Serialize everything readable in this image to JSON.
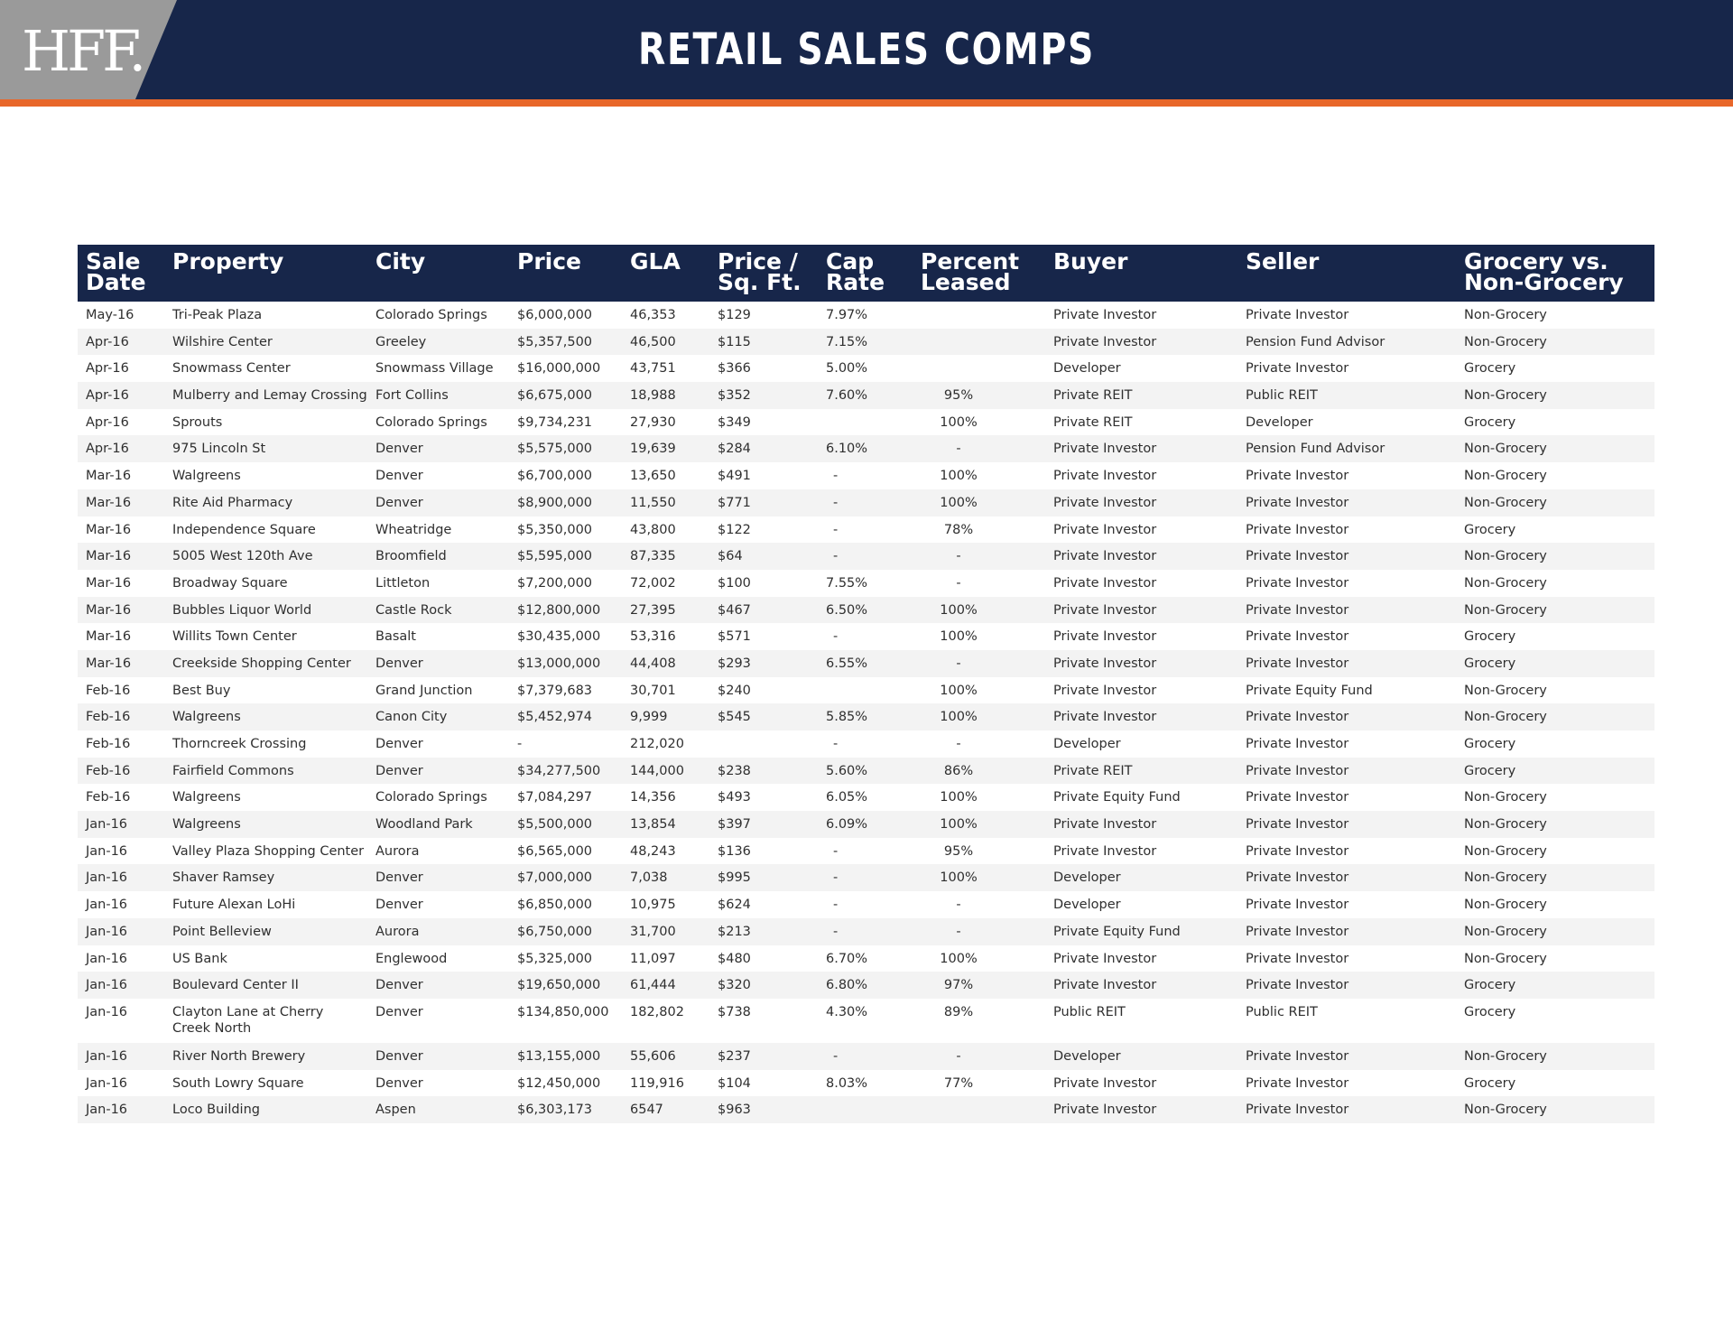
{
  "header": {
    "logo_text": "HFF.",
    "title": "RETAIL SALES COMPS"
  },
  "colors": {
    "navy": "#17264a",
    "orange": "#e8672a",
    "logo_gray": "#9a9a9a"
  },
  "table": {
    "headers": [
      "Sale\nDate",
      "Property",
      "City",
      "Price",
      "GLA",
      "Price /\nSq. Ft.",
      "Cap\nRate",
      "Percent\nLeased",
      "Buyer",
      "Seller",
      "Grocery vs.\nNon-Grocery"
    ],
    "rows": [
      [
        "May-16",
        "Tri-Peak Plaza",
        "Colorado Springs",
        "$6,000,000",
        "46,353",
        "$129",
        "7.97%",
        "",
        "Private Investor",
        "Private Investor",
        "Non-Grocery"
      ],
      [
        "Apr-16",
        "Wilshire Center",
        "Greeley",
        "$5,357,500",
        "46,500",
        "$115",
        "7.15%",
        "",
        "Private Investor",
        "Pension Fund Advisor",
        "Non-Grocery"
      ],
      [
        "Apr-16",
        "Snowmass Center",
        "Snowmass Village",
        "$16,000,000",
        "43,751",
        "$366",
        "5.00%",
        "",
        "Developer",
        "Private Investor",
        "Grocery"
      ],
      [
        "Apr-16",
        "Mulberry and Lemay Crossing",
        "Fort Collins",
        "$6,675,000",
        "18,988",
        "$352",
        "7.60%",
        "95%",
        "Private REIT",
        "Public REIT",
        "Non-Grocery"
      ],
      [
        "Apr-16",
        "Sprouts",
        "Colorado Springs",
        "$9,734,231",
        "27,930",
        "$349",
        "",
        "100%",
        "Private REIT",
        "Developer",
        "Grocery"
      ],
      [
        "Apr-16",
        "975 Lincoln St",
        "Denver",
        "$5,575,000",
        "19,639",
        "$284",
        "6.10%",
        "-",
        "Private Investor",
        "Pension Fund Advisor",
        "Non-Grocery"
      ],
      [
        "Mar-16",
        "Walgreens",
        "Denver",
        "$6,700,000",
        "13,650",
        "$491",
        "-",
        "100%",
        "Private Investor",
        "Private Investor",
        "Non-Grocery"
      ],
      [
        "Mar-16",
        "Rite Aid Pharmacy",
        "Denver",
        "$8,900,000",
        "11,550",
        "$771",
        "-",
        "100%",
        "Private Investor",
        "Private Investor",
        "Non-Grocery"
      ],
      [
        "Mar-16",
        "Independence Square",
        "Wheatridge",
        "$5,350,000",
        "43,800",
        "$122",
        "-",
        "78%",
        "Private Investor",
        "Private Investor",
        "Grocery"
      ],
      [
        "Mar-16",
        "5005 West 120th Ave",
        "Broomfield",
        "$5,595,000",
        "87,335",
        "$64",
        "-",
        "-",
        "Private Investor",
        "Private Investor",
        "Non-Grocery"
      ],
      [
        "Mar-16",
        "Broadway Square",
        "Littleton",
        "$7,200,000",
        "72,002",
        "$100",
        "7.55%",
        "-",
        "Private Investor",
        "Private Investor",
        "Non-Grocery"
      ],
      [
        "Mar-16",
        "Bubbles Liquor World",
        "Castle Rock",
        "$12,800,000",
        "27,395",
        "$467",
        "6.50%",
        "100%",
        "Private Investor",
        "Private Investor",
        "Non-Grocery"
      ],
      [
        "Mar-16",
        "Willits Town Center",
        "Basalt",
        "$30,435,000",
        "53,316",
        "$571",
        "-",
        "100%",
        "Private Investor",
        "Private Investor",
        "Grocery"
      ],
      [
        "Mar-16",
        "Creekside Shopping Center",
        "Denver",
        "$13,000,000",
        "44,408",
        "$293",
        "6.55%",
        "-",
        "Private Investor",
        "Private Investor",
        "Grocery"
      ],
      [
        "Feb-16",
        "Best Buy",
        "Grand Junction",
        "$7,379,683",
        "30,701",
        "$240",
        "",
        "100%",
        "Private Investor",
        "Private Equity Fund",
        "Non-Grocery"
      ],
      [
        "Feb-16",
        "Walgreens",
        "Canon City",
        "$5,452,974",
        "9,999",
        "$545",
        "5.85%",
        "100%",
        "Private Investor",
        "Private Investor",
        "Non-Grocery"
      ],
      [
        "Feb-16",
        "Thorncreek Crossing",
        "Denver",
        "-",
        "212,020",
        "",
        "-",
        "-",
        "Developer",
        "Private Investor",
        "Grocery"
      ],
      [
        "Feb-16",
        "Fairfield Commons",
        "Denver",
        "$34,277,500",
        "144,000",
        "$238",
        "5.60%",
        "86%",
        "Private REIT",
        "Private Investor",
        "Grocery"
      ],
      [
        "Feb-16",
        "Walgreens",
        "Colorado Springs",
        "$7,084,297",
        "14,356",
        "$493",
        "6.05%",
        "100%",
        "Private Equity Fund",
        "Private Investor",
        "Non-Grocery"
      ],
      [
        "Jan-16",
        "Walgreens",
        "Woodland Park",
        "$5,500,000",
        "13,854",
        "$397",
        "6.09%",
        "100%",
        "Private Investor",
        "Private Investor",
        "Non-Grocery"
      ],
      [
        "Jan-16",
        "Valley Plaza Shopping Center",
        "Aurora",
        "$6,565,000",
        "48,243",
        "$136",
        "-",
        "95%",
        "Private Investor",
        "Private Investor",
        "Non-Grocery"
      ],
      [
        "Jan-16",
        "Shaver Ramsey",
        "Denver",
        "$7,000,000",
        "7,038",
        "$995",
        "-",
        "100%",
        "Developer",
        "Private Investor",
        "Non-Grocery"
      ],
      [
        "Jan-16",
        "Future Alexan LoHi",
        "Denver",
        "$6,850,000",
        "10,975",
        "$624",
        "-",
        "-",
        "Developer",
        "Private Investor",
        "Non-Grocery"
      ],
      [
        "Jan-16",
        "Point Belleview",
        "Aurora",
        "$6,750,000",
        "31,700",
        "$213",
        "-",
        "-",
        "Private Equity Fund",
        "Private Investor",
        "Non-Grocery"
      ],
      [
        "Jan-16",
        "US Bank",
        "Englewood",
        "$5,325,000",
        "11,097",
        "$480",
        "6.70%",
        "100%",
        "Private Investor",
        "Private Investor",
        "Non-Grocery"
      ],
      [
        "Jan-16",
        "Boulevard Center II",
        "Denver",
        "$19,650,000",
        "61,444",
        "$320",
        "6.80%",
        "97%",
        "Private Investor",
        "Private Investor",
        "Grocery"
      ],
      [
        "Jan-16",
        "Clayton Lane at Cherry Creek North",
        "Denver",
        "$134,850,000",
        "182,802",
        "$738",
        "4.30%",
        "89%",
        "Public REIT",
        "Public REIT",
        "Grocery"
      ],
      [
        "Jan-16",
        "River North Brewery",
        "Denver",
        "$13,155,000",
        "55,606",
        "$237",
        "-",
        "-",
        "Developer",
        "Private Investor",
        "Non-Grocery"
      ],
      [
        "Jan-16",
        "South Lowry Square",
        "Denver",
        "$12,450,000",
        "119,916",
        "$104",
        "8.03%",
        "77%",
        "Private Investor",
        "Private Investor",
        "Grocery"
      ],
      [
        "Jan-16",
        "Loco Building",
        "Aspen",
        "$6,303,173",
        "6547",
        "$963",
        "",
        "",
        "Private Investor",
        "Private Investor",
        "Non-Grocery"
      ]
    ]
  }
}
